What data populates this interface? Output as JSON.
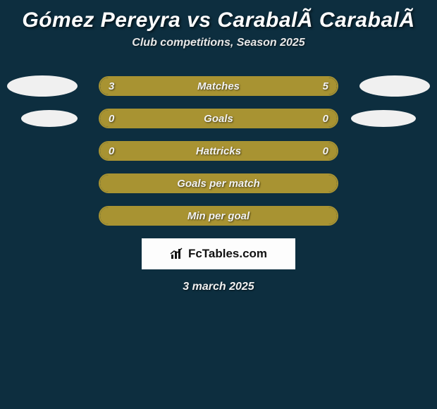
{
  "title": "Gómez Pereyra vs CarabalÃ­ CarabalÃ­",
  "subtitle": "Club competitions, Season 2025",
  "date": "3 march 2025",
  "logo_text": "FcTables.com",
  "colors": {
    "background": "#0d2e3f",
    "bar_fill": "#a89332",
    "bar_border": "#a89332",
    "ellipse": "#f0f0f0",
    "logo_bg": "#fdfdfd",
    "text": "#ffffff"
  },
  "rows": [
    {
      "label": "Matches",
      "left_val": "3",
      "right_val": "5",
      "left_pct": 37.5,
      "right_pct": 62.5,
      "show_ellipses": "large",
      "show_vals": true,
      "fill_mode": "split"
    },
    {
      "label": "Goals",
      "left_val": "0",
      "right_val": "0",
      "left_pct": 0,
      "right_pct": 0,
      "show_ellipses": "small",
      "show_vals": true,
      "fill_mode": "full"
    },
    {
      "label": "Hattricks",
      "left_val": "0",
      "right_val": "0",
      "left_pct": 0,
      "right_pct": 0,
      "show_ellipses": "none",
      "show_vals": true,
      "fill_mode": "full"
    },
    {
      "label": "Goals per match",
      "left_val": "",
      "right_val": "",
      "left_pct": 0,
      "right_pct": 0,
      "show_ellipses": "none",
      "show_vals": false,
      "fill_mode": "full"
    },
    {
      "label": "Min per goal",
      "left_val": "",
      "right_val": "",
      "left_pct": 0,
      "right_pct": 0,
      "show_ellipses": "none",
      "show_vals": false,
      "fill_mode": "full"
    }
  ]
}
